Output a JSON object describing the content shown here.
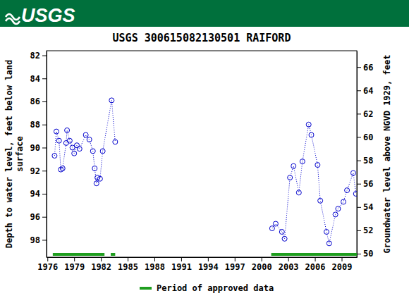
{
  "header": {
    "logo": "USGS"
  },
  "chart_data": {
    "type": "line",
    "title": "USGS 300615082130501 RAIFORD",
    "ylabel": [
      "Depth to water level, feet below land",
      "surface"
    ],
    "y2label": "Groundwater level above NGVD 1929, feet",
    "xlim": [
      1975.9,
      2010.7
    ],
    "xticks": [
      1976,
      1979,
      1982,
      1985,
      1988,
      1991,
      1994,
      1997,
      2000,
      2003,
      2006,
      2009
    ],
    "ylim": [
      81.6,
      99.5
    ],
    "yticks": [
      82,
      84,
      86,
      88,
      90,
      92,
      94,
      96,
      98
    ],
    "y2lim": [
      49.7,
      67.4
    ],
    "y2ticks": [
      50,
      52,
      54,
      56,
      58,
      60,
      62,
      64,
      66
    ],
    "grid": false,
    "x": [
      1976.8,
      1977.0,
      1977.3,
      1977.5,
      1977.7,
      1978.1,
      1978.2,
      1978.5,
      1978.8,
      1979.0,
      1979.3,
      1979.6,
      1980.3,
      1980.7,
      1981.1,
      1981.3,
      1981.5,
      1981.6,
      1981.9,
      1982.2,
      1983.2,
      1983.6,
      null,
      2001.2,
      2001.6,
      2002.3,
      2002.6,
      2003.2,
      2003.6,
      2004.2,
      2004.6,
      2005.3,
      2005.6,
      2006.3,
      2006.6,
      2007.3,
      2007.6,
      2008.3,
      2008.6,
      2009.2,
      2009.6,
      2010.3,
      2010.6
    ],
    "series": [
      {
        "color": "#0000cc",
        "marker": "circle",
        "line_style": "dotted",
        "values": [
          90.7,
          88.6,
          89.4,
          91.9,
          91.8,
          89.6,
          88.5,
          89.4,
          90.0,
          90.5,
          89.8,
          90.1,
          88.9,
          89.3,
          90.3,
          91.8,
          93.1,
          92.6,
          92.7,
          90.3,
          85.9,
          89.5,
          null,
          97.0,
          96.6,
          97.3,
          97.9,
          92.6,
          91.6,
          93.9,
          91.2,
          88.0,
          88.9,
          91.5,
          94.6,
          97.3,
          98.3,
          95.8,
          95.3,
          94.7,
          93.7,
          92.2,
          94.0
        ]
      }
    ],
    "approved_periods": {
      "name": "Period of approved data",
      "color": "#1f9e1f",
      "ranges": [
        [
          1976.6,
          1982.4
        ],
        [
          1983.1,
          1983.6
        ],
        [
          2001.1,
          2010.7
        ]
      ]
    }
  }
}
